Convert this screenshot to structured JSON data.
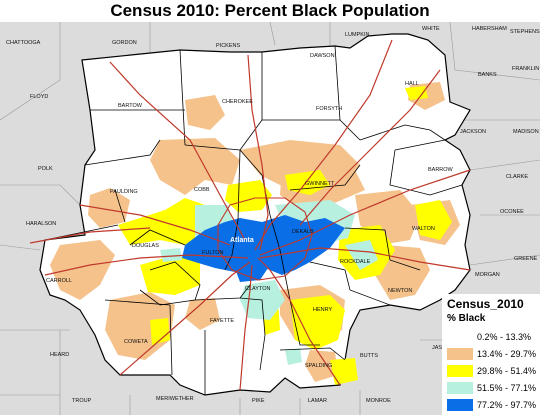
{
  "title": "Census 2010: Percent Black Population",
  "colors": {
    "background_counties": "#dcdcdc",
    "region_fill": "#ffffff",
    "county_border": "#000000",
    "roads": "#c0392b"
  },
  "city_label": "Atlanta",
  "county_labels": [
    "CHATTOOGA",
    "GORDON",
    "PICKENS",
    "LUMPKIN",
    "WHITE",
    "HABERSHAM",
    "STEPHENS",
    "DAWSON",
    "BANKS",
    "FRANKLIN",
    "FLOYD",
    "BARTOW",
    "CHEROKEE",
    "FORSYTH",
    "HALL",
    "JACKSON",
    "MADISON",
    "POLK",
    "BARROW",
    "CLARKE",
    "PAULDING",
    "COBB",
    "GWINNETT",
    "OCONEE",
    "HARALSON",
    "DOUGLAS",
    "FULTON",
    "DEKALB",
    "WALTON",
    "GREENE",
    "CARROLL",
    "ROCKDALE",
    "MORGAN",
    "CLAYTON",
    "NEWTON",
    "HENRY",
    "FAYETTE",
    "COWETA",
    "HEARD",
    "BUTTS",
    "JASP",
    "SPALDING",
    "TROUP",
    "MERIWETHER",
    "PIKE",
    "LAMAR",
    "MONROE"
  ],
  "legend": {
    "title": "Census_2010",
    "subtitle": "% Black",
    "classes": [
      {
        "label": "0.2% - 13.3%",
        "color": "#ffffff"
      },
      {
        "label": "13.4% - 29.7%",
        "color": "#f5c28c"
      },
      {
        "label": "29.8% - 51.4%",
        "color": "#ffff00"
      },
      {
        "label": "51.5% - 77.1%",
        "color": "#b8f0e0"
      },
      {
        "label": "77.2% - 97.7%",
        "color": "#0a6ee6"
      }
    ]
  }
}
